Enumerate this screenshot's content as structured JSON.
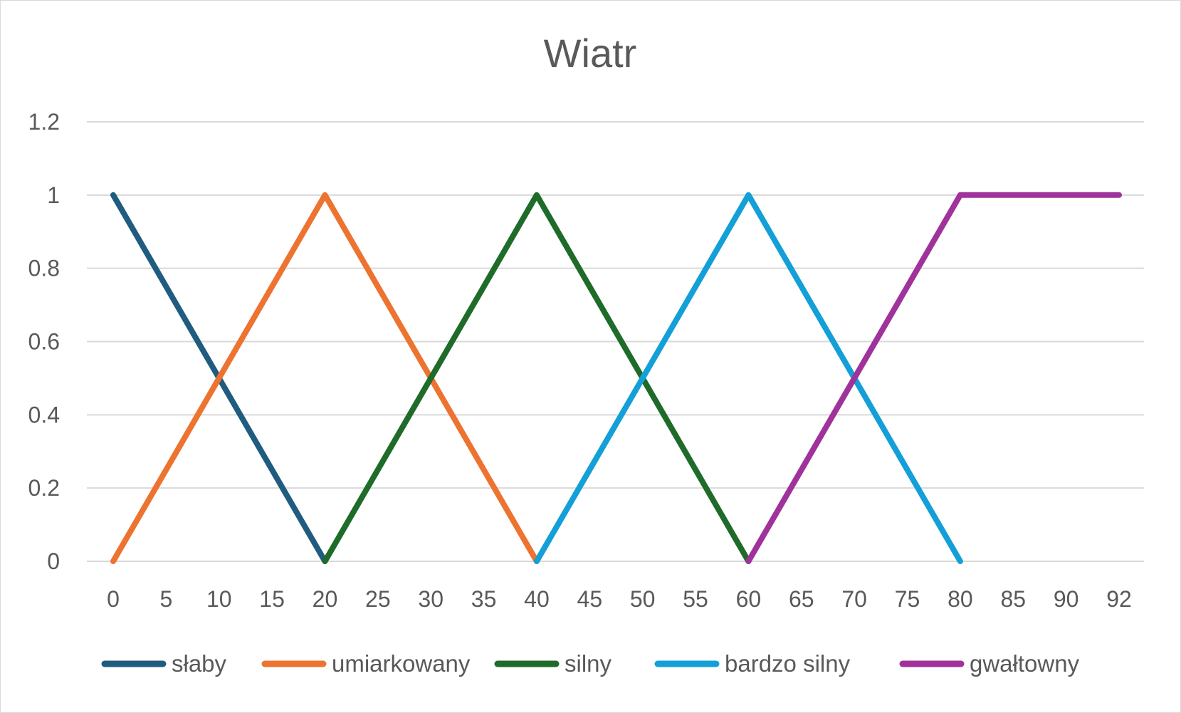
{
  "chart_data": {
    "type": "line",
    "title": "Wiatr",
    "xlabel": "",
    "ylabel": "",
    "categories": [
      "0",
      "5",
      "10",
      "15",
      "20",
      "25",
      "30",
      "35",
      "40",
      "45",
      "50",
      "55",
      "60",
      "65",
      "70",
      "75",
      "80",
      "85",
      "90",
      "92"
    ],
    "x": [
      0,
      5,
      10,
      15,
      20,
      25,
      30,
      35,
      40,
      45,
      50,
      55,
      60,
      65,
      70,
      75,
      80,
      85,
      90,
      92
    ],
    "y_ticks": [
      "0",
      "0.2",
      "0.4",
      "0.6",
      "0.8",
      "1",
      "1.2"
    ],
    "ylim": [
      0,
      1.2
    ],
    "grid": true,
    "legend_position": "bottom",
    "series": [
      {
        "name": "słaby",
        "color": "#1f5c7f",
        "values": [
          1,
          0.75,
          0.5,
          0.25,
          0,
          null,
          null,
          null,
          null,
          null,
          null,
          null,
          null,
          null,
          null,
          null,
          null,
          null,
          null,
          null
        ]
      },
      {
        "name": "umiarkowany",
        "color": "#ed7330",
        "values": [
          0,
          0.25,
          0.5,
          0.75,
          1,
          0.75,
          0.5,
          0.25,
          0,
          null,
          null,
          null,
          null,
          null,
          null,
          null,
          null,
          null,
          null,
          null
        ]
      },
      {
        "name": "silny",
        "color": "#1e6b2a",
        "values": [
          null,
          null,
          null,
          null,
          0,
          0.25,
          0.5,
          0.75,
          1,
          0.75,
          0.5,
          0.25,
          0,
          null,
          null,
          null,
          null,
          null,
          null,
          null
        ]
      },
      {
        "name": "bardzo silny",
        "color": "#139fd7",
        "values": [
          null,
          null,
          null,
          null,
          null,
          null,
          null,
          null,
          0,
          0.25,
          0.5,
          0.75,
          1,
          0.75,
          0.5,
          0.25,
          0,
          null,
          null,
          null
        ]
      },
      {
        "name": "gwałtowny",
        "color": "#a0329b",
        "values": [
          null,
          null,
          null,
          null,
          null,
          null,
          null,
          null,
          null,
          null,
          null,
          null,
          0,
          0.25,
          0.5,
          0.75,
          1,
          1,
          1,
          1
        ]
      }
    ]
  }
}
